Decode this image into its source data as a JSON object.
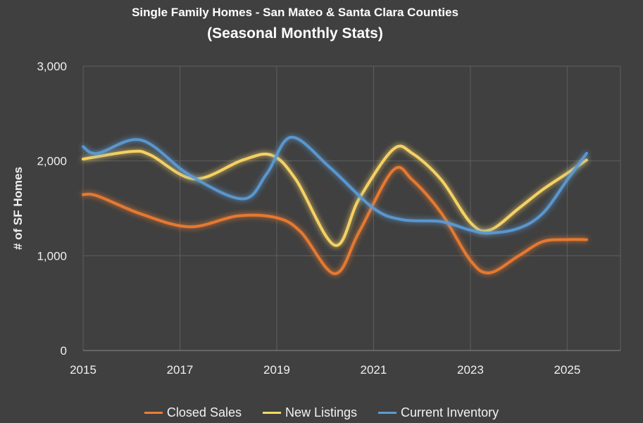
{
  "chart_data": {
    "type": "line",
    "title": "Single Family Homes - San Mateo & Santa Clara  Counties",
    "subtitle": "(Seasonal Monthly Stats)",
    "xlabel": "",
    "ylabel": "# of SF Homes",
    "xlim": [
      2015,
      2026.1
    ],
    "ylim": [
      0,
      3000
    ],
    "xticks": [
      2015,
      2017,
      2019,
      2021,
      2023,
      2025
    ],
    "yticks": [
      0,
      1000,
      2000,
      3000
    ],
    "xtick_labels": [
      "2015",
      "2017",
      "2019",
      "2021",
      "2023",
      "2025"
    ],
    "ytick_labels": [
      "0",
      "1,000",
      "2,000",
      "3,000"
    ],
    "grid": true,
    "legend_position": "bottom",
    "series": [
      {
        "name": "Closed Sales",
        "color": "#ED7D31",
        "x": [
          2015.0,
          2015.3,
          2016.2,
          2017.2,
          2018.2,
          2019.0,
          2019.5,
          2020.2,
          2020.7,
          2021.4,
          2021.8,
          2022.4,
          2023.0,
          2023.4,
          2024.0,
          2024.5,
          2025.0,
          2025.4
        ],
        "y": [
          1645,
          1630,
          1440,
          1305,
          1420,
          1400,
          1250,
          810,
          1250,
          1900,
          1800,
          1450,
          950,
          820,
          1000,
          1150,
          1170,
          1170
        ]
      },
      {
        "name": "New Listings",
        "color": "#FFD966",
        "x": [
          2015.0,
          2016.0,
          2016.4,
          2017.3,
          2018.3,
          2018.9,
          2019.4,
          2020.2,
          2020.7,
          2021.4,
          2021.8,
          2022.4,
          2023.0,
          2023.4,
          2024.0,
          2024.5,
          2025.0,
          2025.4
        ],
        "y": [
          2020,
          2100,
          2060,
          1810,
          2010,
          2060,
          1800,
          1110,
          1600,
          2120,
          2080,
          1800,
          1350,
          1270,
          1500,
          1700,
          1870,
          2010
        ]
      },
      {
        "name": "Current Inventory",
        "color": "#5B9BD5",
        "x": [
          2015.0,
          2015.3,
          2016.2,
          2017.2,
          2018.3,
          2018.8,
          2019.3,
          2020.1,
          2021.0,
          2021.6,
          2022.4,
          2023.0,
          2023.4,
          2024.0,
          2024.5,
          2025.0,
          2025.4
        ],
        "y": [
          2150,
          2080,
          2220,
          1850,
          1600,
          1870,
          2250,
          1930,
          1500,
          1380,
          1360,
          1270,
          1240,
          1290,
          1450,
          1800,
          2080
        ]
      }
    ]
  }
}
